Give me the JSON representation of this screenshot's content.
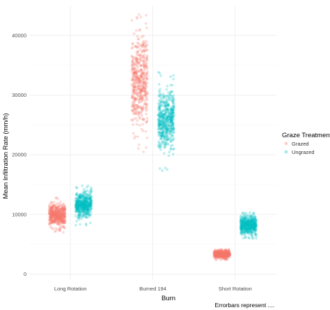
{
  "chart_data": {
    "type": "scatter",
    "jittered": true,
    "xlabel": "Burn",
    "ylabel": "Mean Infiltration Rate (mm/h)",
    "caption": "Errorbars represent ....",
    "categories": [
      "Long Rotation",
      "Burned 194",
      "Short Rotation"
    ],
    "y_ticks": [
      "0",
      "10000",
      "20000",
      "30000",
      "40000"
    ],
    "ylim": [
      -1000,
      45000
    ],
    "grid": true,
    "point_opacity": 0.25,
    "legend": {
      "title": "Graze Treatment",
      "placement": "right",
      "entries": [
        "Grazed",
        "Ungrazed"
      ]
    },
    "series": [
      {
        "name": "Grazed",
        "color": "#F8766D",
        "groups": [
          {
            "category": "Long Rotation",
            "mean": 9900,
            "sd": 900,
            "min": 7000,
            "max": 12900,
            "n": 500
          },
          {
            "category": "Burned 194",
            "mean": 32500,
            "sd": 3600,
            "min": 20500,
            "max": 43500,
            "n": 500
          },
          {
            "category": "Short Rotation",
            "mean": 3300,
            "sd": 320,
            "min": 2400,
            "max": 4200,
            "n": 500
          }
        ]
      },
      {
        "name": "Ungrazed",
        "color": "#00BFC4",
        "groups": [
          {
            "category": "Long Rotation",
            "mean": 11600,
            "sd": 1100,
            "min": 8200,
            "max": 14800,
            "n": 500
          },
          {
            "category": "Burned 194",
            "mean": 25800,
            "sd": 2500,
            "min": 16500,
            "max": 34700,
            "n": 500
          },
          {
            "category": "Short Rotation",
            "mean": 8200,
            "sd": 750,
            "min": 6000,
            "max": 10500,
            "n": 500
          }
        ]
      }
    ]
  }
}
